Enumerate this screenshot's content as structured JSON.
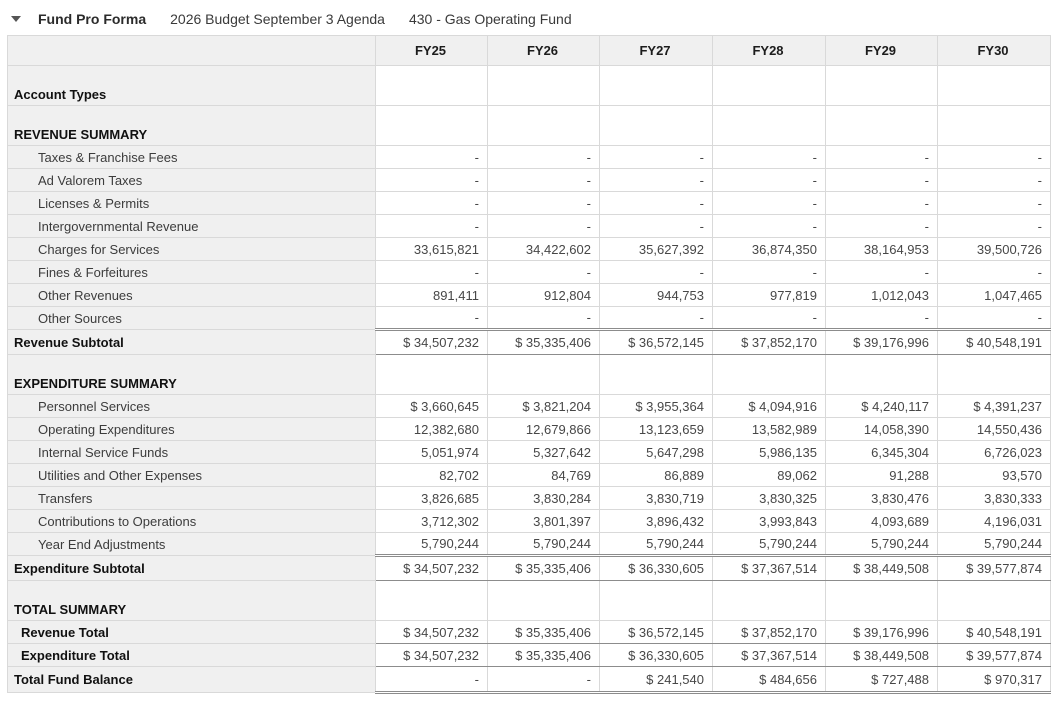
{
  "header": {
    "collapse_icon": "triangle-down-icon",
    "title": "Fund Pro Forma",
    "budget_name": "2026 Budget September 3 Agenda",
    "fund_name": "430 - Gas Operating Fund"
  },
  "colors": {
    "header_row_bg": "#f0f0f0",
    "label_column_bg": "#f0f0f0",
    "grid_line": "#d9d9d9",
    "accounting_rule": "#8c8c8c"
  },
  "table": {
    "columns": [
      "",
      "FY25",
      "FY26",
      "FY27",
      "FY28",
      "FY29",
      "FY30"
    ],
    "rows": [
      {
        "type": "section",
        "label": "Account Types",
        "values": [
          "",
          "",
          "",
          "",
          "",
          ""
        ]
      },
      {
        "type": "section",
        "label": "REVENUE SUMMARY",
        "values": [
          "",
          "",
          "",
          "",
          "",
          ""
        ]
      },
      {
        "type": "detail",
        "label": "Taxes & Franchise Fees",
        "values": [
          "-",
          "-",
          "-",
          "-",
          "-",
          "-"
        ]
      },
      {
        "type": "detail",
        "label": "Ad Valorem Taxes",
        "values": [
          "-",
          "-",
          "-",
          "-",
          "-",
          "-"
        ]
      },
      {
        "type": "detail",
        "label": "Licenses & Permits",
        "values": [
          "-",
          "-",
          "-",
          "-",
          "-",
          "-"
        ]
      },
      {
        "type": "detail",
        "label": "Intergovernmental Revenue",
        "values": [
          "-",
          "-",
          "-",
          "-",
          "-",
          "-"
        ]
      },
      {
        "type": "detail",
        "label": "Charges for Services",
        "values": [
          "33,615,821",
          "34,422,602",
          "35,627,392",
          "36,874,350",
          "38,164,953",
          "39,500,726"
        ]
      },
      {
        "type": "detail",
        "label": "Fines & Forfeitures",
        "values": [
          "-",
          "-",
          "-",
          "-",
          "-",
          "-"
        ]
      },
      {
        "type": "detail",
        "label": "Other Revenues",
        "values": [
          "891,411",
          "912,804",
          "944,753",
          "977,819",
          "1,012,043",
          "1,047,465"
        ]
      },
      {
        "type": "detail",
        "label": "Other Sources",
        "values": [
          "-",
          "-",
          "-",
          "-",
          "-",
          "-"
        ]
      },
      {
        "type": "subtotal",
        "label": "Revenue Subtotal",
        "values": [
          "$ 34,507,232",
          "$ 35,335,406",
          "$ 36,572,145",
          "$ 37,852,170",
          "$ 39,176,996",
          "$ 40,548,191"
        ]
      },
      {
        "type": "section",
        "label": "EXPENDITURE SUMMARY",
        "values": [
          "",
          "",
          "",
          "",
          "",
          ""
        ]
      },
      {
        "type": "detail",
        "label": "Personnel Services",
        "values": [
          "$ 3,660,645",
          "$ 3,821,204",
          "$ 3,955,364",
          "$ 4,094,916",
          "$ 4,240,117",
          "$ 4,391,237"
        ]
      },
      {
        "type": "detail",
        "label": "Operating Expenditures",
        "values": [
          "12,382,680",
          "12,679,866",
          "13,123,659",
          "13,582,989",
          "14,058,390",
          "14,550,436"
        ]
      },
      {
        "type": "detail",
        "label": "Internal Service Funds",
        "values": [
          "5,051,974",
          "5,327,642",
          "5,647,298",
          "5,986,135",
          "6,345,304",
          "6,726,023"
        ]
      },
      {
        "type": "detail",
        "label": "Utilities and Other Expenses",
        "values": [
          "82,702",
          "84,769",
          "86,889",
          "89,062",
          "91,288",
          "93,570"
        ]
      },
      {
        "type": "detail",
        "label": "Transfers",
        "values": [
          "3,826,685",
          "3,830,284",
          "3,830,719",
          "3,830,325",
          "3,830,476",
          "3,830,333"
        ]
      },
      {
        "type": "detail",
        "label": "Contributions to Operations",
        "values": [
          "3,712,302",
          "3,801,397",
          "3,896,432",
          "3,993,843",
          "4,093,689",
          "4,196,031"
        ]
      },
      {
        "type": "detail",
        "label": "Year End Adjustments",
        "values": [
          "5,790,244",
          "5,790,244",
          "5,790,244",
          "5,790,244",
          "5,790,244",
          "5,790,244"
        ]
      },
      {
        "type": "subtotal",
        "label": "Expenditure Subtotal",
        "values": [
          "$ 34,507,232",
          "$ 35,335,406",
          "$ 36,330,605",
          "$ 37,367,514",
          "$ 38,449,508",
          "$ 39,577,874"
        ]
      },
      {
        "type": "section",
        "label": "TOTAL SUMMARY",
        "values": [
          "",
          "",
          "",
          "",
          "",
          ""
        ]
      },
      {
        "type": "total",
        "label": "Revenue Total",
        "values": [
          "$ 34,507,232",
          "$ 35,335,406",
          "$ 36,572,145",
          "$ 37,852,170",
          "$ 39,176,996",
          "$ 40,548,191"
        ]
      },
      {
        "type": "total2",
        "label": "Expenditure Total",
        "values": [
          "$ 34,507,232",
          "$ 35,335,406",
          "$ 36,330,605",
          "$ 37,367,514",
          "$ 38,449,508",
          "$ 39,577,874"
        ]
      },
      {
        "type": "grand",
        "label": "Total Fund Balance",
        "values": [
          "-",
          "-",
          "$ 241,540",
          "$ 484,656",
          "$ 727,488",
          "$ 970,317"
        ]
      }
    ]
  }
}
